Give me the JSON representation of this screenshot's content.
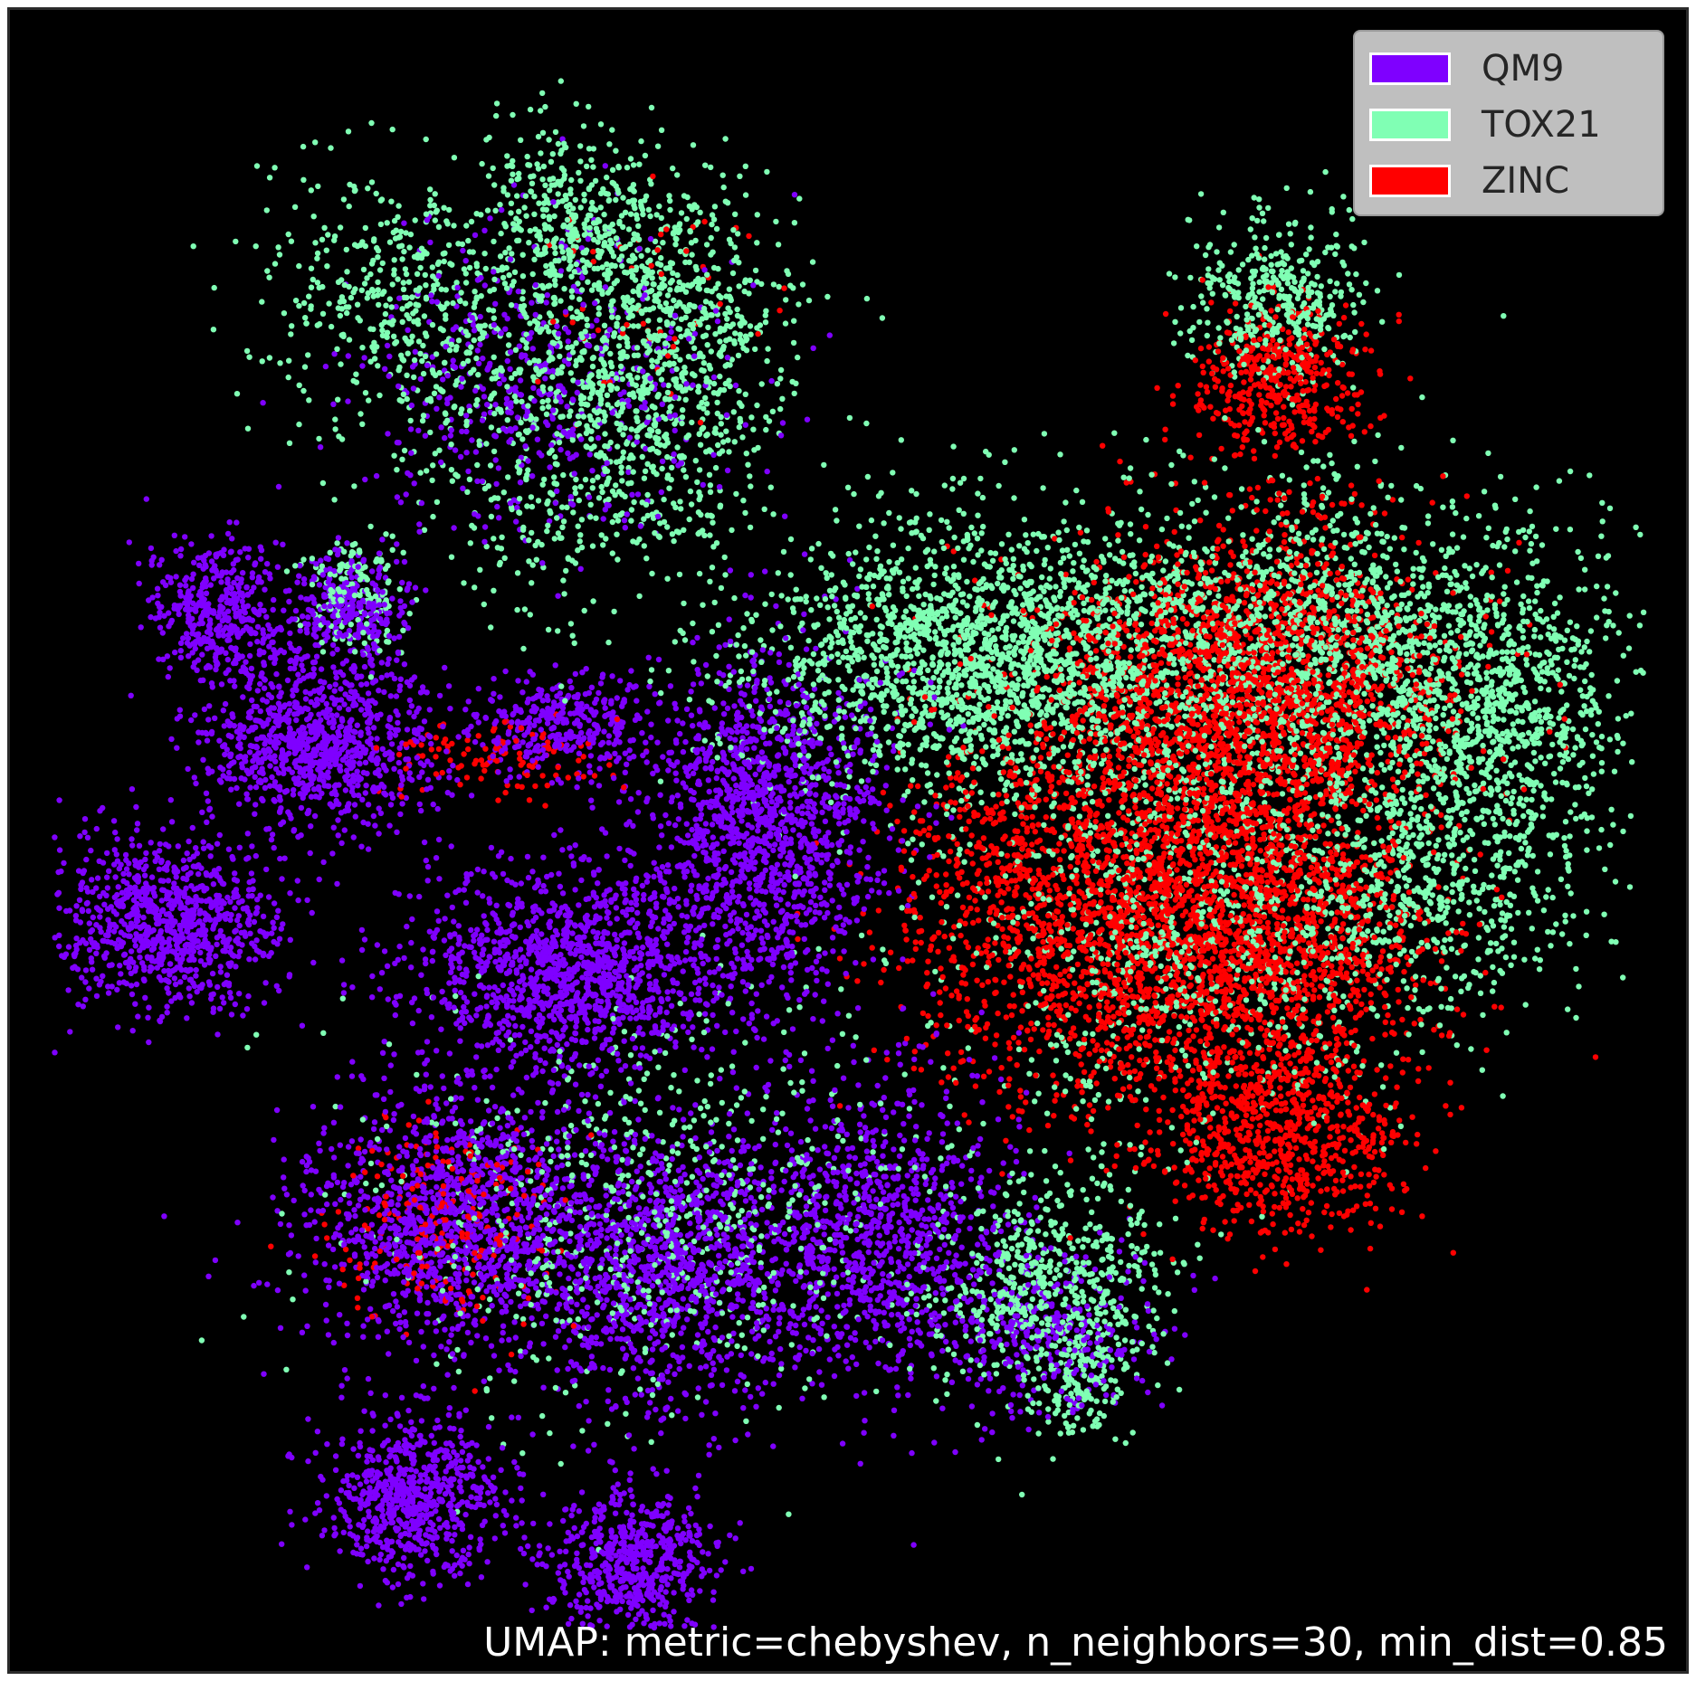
{
  "chart_data": {
    "type": "scatter",
    "title": "",
    "xlabel": "",
    "ylabel": "",
    "background_color": "#000000",
    "grid": false,
    "axes_visible": false,
    "legend_position": "top-right",
    "annotation": "UMAP: metric=chebyshev, n_neighbors=30, min_dist=0.85",
    "xlim": [
      0,
      100
    ],
    "ylim": [
      0,
      100
    ],
    "series": [
      {
        "name": "QM9",
        "color": "#7f00ff",
        "clusters": [
          {
            "x": 12,
            "y": 64,
            "sx": 2.2,
            "sy": 2.2,
            "n": 420
          },
          {
            "x": 20,
            "y": 64,
            "sx": 1.8,
            "sy": 1.8,
            "n": 300
          },
          {
            "x": 18,
            "y": 56,
            "sx": 3.4,
            "sy": 2.6,
            "n": 950
          },
          {
            "x": 33,
            "y": 57,
            "sx": 3.0,
            "sy": 1.5,
            "n": 360
          },
          {
            "x": 9,
            "y": 45,
            "sx": 3.4,
            "sy": 2.6,
            "n": 900
          },
          {
            "x": 33,
            "y": 42,
            "sx": 4.6,
            "sy": 3.2,
            "n": 1300
          },
          {
            "x": 45,
            "y": 51,
            "sx": 3.6,
            "sy": 5.2,
            "n": 1400
          },
          {
            "x": 26,
            "y": 27,
            "sx": 4.5,
            "sy": 4.0,
            "n": 1300
          },
          {
            "x": 39,
            "y": 24,
            "sx": 4.2,
            "sy": 4.2,
            "n": 1100
          },
          {
            "x": 52,
            "y": 26,
            "sx": 4.0,
            "sy": 4.6,
            "n": 1000
          },
          {
            "x": 24,
            "y": 10,
            "sx": 2.6,
            "sy": 2.5,
            "n": 700
          },
          {
            "x": 37,
            "y": 6,
            "sx": 2.4,
            "sy": 2.4,
            "n": 600
          },
          {
            "x": 32,
            "y": 78,
            "sx": 5.5,
            "sy": 5.0,
            "n": 500
          },
          {
            "x": 62,
            "y": 20,
            "sx": 3.0,
            "sy": 2.5,
            "n": 300
          }
        ]
      },
      {
        "name": "TOX21",
        "color": "#80ffb4",
        "clusters": [
          {
            "x": 22,
            "y": 83,
            "sx": 4.0,
            "sy": 4.0,
            "n": 400
          },
          {
            "x": 33,
            "y": 88,
            "sx": 3.0,
            "sy": 3.2,
            "n": 360
          },
          {
            "x": 35,
            "y": 76,
            "sx": 5.5,
            "sy": 5.5,
            "n": 1000
          },
          {
            "x": 40,
            "y": 83,
            "sx": 3.0,
            "sy": 3.5,
            "n": 400
          },
          {
            "x": 76,
            "y": 83,
            "sx": 2.6,
            "sy": 2.6,
            "n": 400
          },
          {
            "x": 58,
            "y": 61,
            "sx": 7.0,
            "sy": 4.2,
            "n": 2000
          },
          {
            "x": 78,
            "y": 62,
            "sx": 8.0,
            "sy": 4.6,
            "n": 1700
          },
          {
            "x": 89,
            "y": 58,
            "sx": 4.0,
            "sy": 4.0,
            "n": 700
          },
          {
            "x": 85,
            "y": 48,
            "sx": 4.5,
            "sy": 4.5,
            "n": 700
          },
          {
            "x": 62,
            "y": 23,
            "sx": 3.8,
            "sy": 3.4,
            "n": 600
          },
          {
            "x": 38,
            "y": 27,
            "sx": 8.0,
            "sy": 6.0,
            "n": 700
          },
          {
            "x": 70,
            "y": 45,
            "sx": 7.0,
            "sy": 6.0,
            "n": 900
          },
          {
            "x": 20,
            "y": 65,
            "sx": 1.6,
            "sy": 1.8,
            "n": 150
          },
          {
            "x": 64,
            "y": 17,
            "sx": 1.4,
            "sy": 1.8,
            "n": 120
          }
        ]
      },
      {
        "name": "ZINC",
        "color": "#ff0000",
        "clusters": [
          {
            "x": 76,
            "y": 78,
            "sx": 2.6,
            "sy": 2.3,
            "n": 450
          },
          {
            "x": 74,
            "y": 59,
            "sx": 6.0,
            "sy": 5.0,
            "n": 2200
          },
          {
            "x": 74,
            "y": 44,
            "sx": 5.5,
            "sy": 5.5,
            "n": 2000
          },
          {
            "x": 63,
            "y": 46,
            "sx": 5.0,
            "sy": 6.0,
            "n": 1300
          },
          {
            "x": 76,
            "y": 32,
            "sx": 4.0,
            "sy": 3.0,
            "n": 700
          },
          {
            "x": 26,
            "y": 27,
            "sx": 3.5,
            "sy": 3.0,
            "n": 220
          },
          {
            "x": 29,
            "y": 55,
            "sx": 3.2,
            "sy": 1.2,
            "n": 120
          },
          {
            "x": 38,
            "y": 83,
            "sx": 4.0,
            "sy": 4.0,
            "n": 50
          }
        ]
      }
    ]
  }
}
